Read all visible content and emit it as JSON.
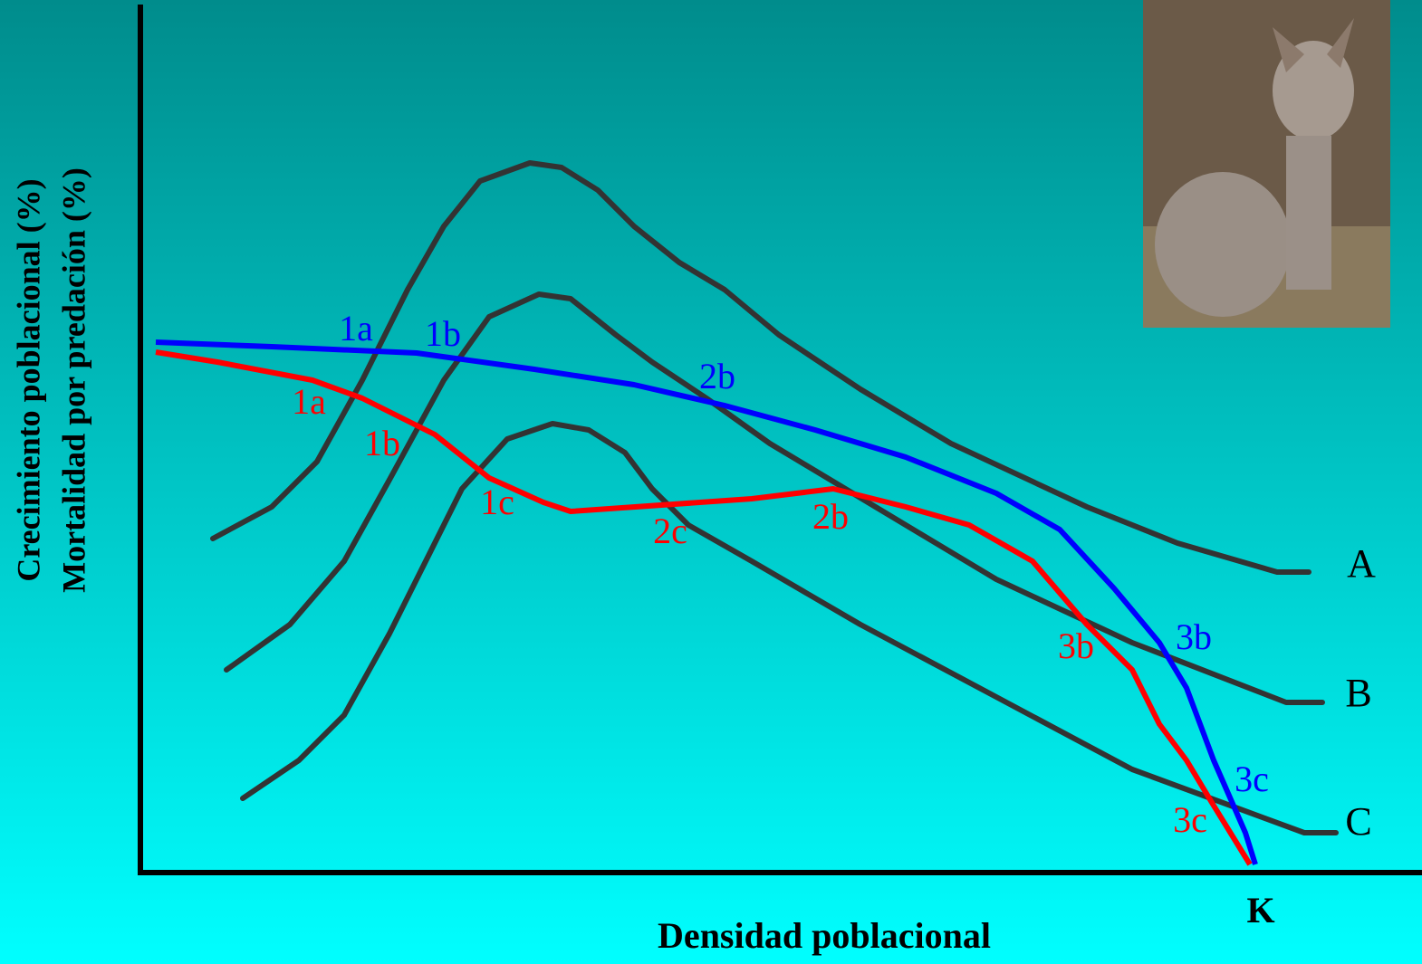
{
  "axes": {
    "y_label_1": "Crecimiento poblacional (%)",
    "y_label_2": "Mortalidad por predación (%)",
    "x_label": "Densidad poblacional",
    "x_end": "K"
  },
  "growth_curves": [
    {
      "label": "A"
    },
    {
      "label": "B"
    },
    {
      "label": "C"
    }
  ],
  "predation_curves": [
    {
      "labels": [
        "1a",
        "1b",
        "2b",
        "3b",
        "3c"
      ]
    },
    {
      "labels": [
        "1a",
        "1b",
        "1c",
        "2c",
        "2b",
        "3b",
        "3c"
      ]
    }
  ]
}
